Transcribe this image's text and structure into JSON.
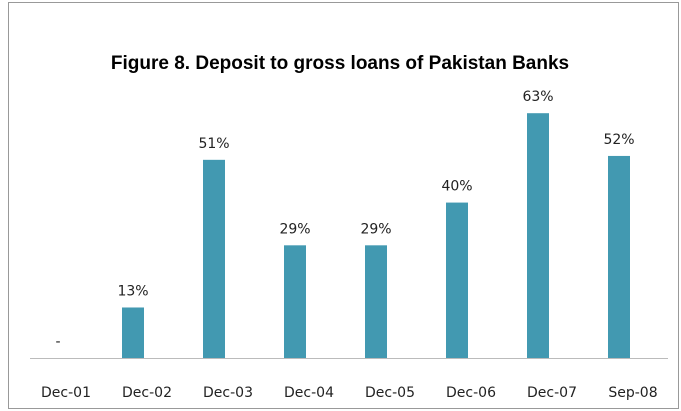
{
  "chart_data": {
    "type": "bar",
    "title": "Figure 8. Deposit to gross loans of Pakistan Banks",
    "categories": [
      "Dec-01",
      "Dec-02",
      "Dec-03",
      "Dec-04",
      "Dec-05",
      "Dec-06",
      "Dec-07",
      "Sep-08"
    ],
    "values": [
      0,
      13,
      51,
      29,
      29,
      40,
      63,
      52
    ],
    "value_labels": [
      "-",
      "13%",
      "51%",
      "29%",
      "29%",
      "40%",
      "63%",
      "52%"
    ],
    "color": "#4299b1",
    "ylim": [
      0,
      70
    ],
    "grid": false
  }
}
